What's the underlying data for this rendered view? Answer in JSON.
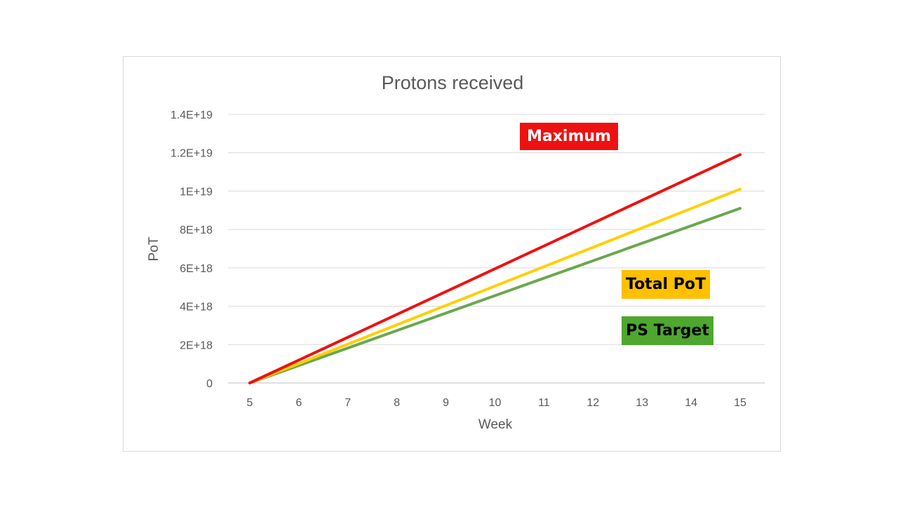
{
  "chart_data": {
    "type": "line",
    "title": "Protons received",
    "xlabel": "Week",
    "ylabel": "PoT",
    "x": [
      5,
      15
    ],
    "xlim": [
      5,
      15
    ],
    "xticks": [
      "5",
      "6",
      "7",
      "8",
      "9",
      "10",
      "11",
      "12",
      "13",
      "14",
      "15"
    ],
    "ylim": [
      0,
      1.4e+19
    ],
    "yticks": [
      "0",
      "2E+18",
      "4E+18",
      "6E+18",
      "8E+18",
      "1E+19",
      "1.2E+19",
      "1.4E+19"
    ],
    "grid": true,
    "series": [
      {
        "name": "Maximum",
        "color": "#ee1111",
        "values": [
          0,
          1.19e+19
        ]
      },
      {
        "name": "Total PoT",
        "color": "#ffd000",
        "values": [
          0,
          1.01e+19
        ]
      },
      {
        "name": "PS Target",
        "color": "#6aa84f",
        "values": [
          0,
          9.1e+18
        ]
      }
    ],
    "annotations": [
      {
        "text": "Maximum",
        "background": "#ee1111",
        "text_color": "#ffffff"
      },
      {
        "text": "Total PoT",
        "background": "#ffc000",
        "text_color": "#000000"
      },
      {
        "text": "PS Target",
        "background": "#4ea72e",
        "text_color": "#000000"
      }
    ]
  }
}
